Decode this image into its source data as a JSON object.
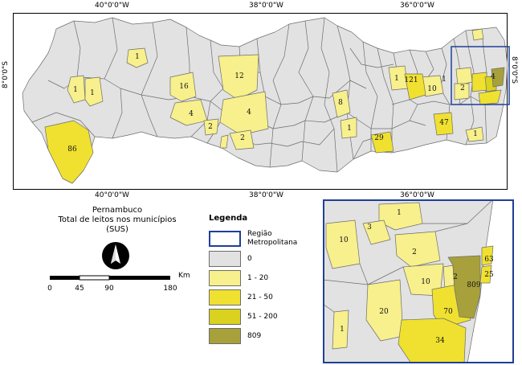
{
  "map": {
    "coords_top": [
      "40°0'0\"W",
      "38°0'0\"W",
      "36°0'0\"W"
    ],
    "coords_bottom": [
      "40°0'0\"W",
      "38°0'0\"W",
      "36°0'0\"W"
    ],
    "lat_left": "8°0'0\"S",
    "lat_right": "8°0'0\"S",
    "municipality_labels": [
      "1",
      "1",
      "1",
      "16",
      "12",
      "4",
      "4",
      "2",
      "2",
      "86",
      "8",
      "1",
      "121",
      "10",
      "1",
      "1",
      "47",
      "29",
      "2",
      "4",
      "1"
    ]
  },
  "inset": {
    "municipality_labels": [
      "1",
      "3",
      "10",
      "2",
      "10",
      "2",
      "20",
      "70",
      "809",
      "63",
      "25",
      "34",
      "1"
    ]
  },
  "title": {
    "line1": "Pernambuco",
    "line2": "Total de leitos nos municípios",
    "line3": "(SUS)"
  },
  "scale": {
    "unit": "Km",
    "ticks": [
      "0",
      "45",
      "90",
      "180"
    ]
  },
  "legend": {
    "heading": "Legenda",
    "items": [
      {
        "label": "Região Metropolitana",
        "color": "#ffffff",
        "border": "#1f3f99"
      },
      {
        "label": "0",
        "color": "#e2e2e2"
      },
      {
        "label": "1 - 20",
        "color": "#f7f08c"
      },
      {
        "label": "21 - 50",
        "color": "#f0e130"
      },
      {
        "label": "51 - 200",
        "color": "#d9d21e"
      },
      {
        "label": "809",
        "color": "#a8a03a"
      }
    ]
  },
  "colors": {
    "zero": "#e2e2e2",
    "c1_20": "#f7f08c",
    "c21_50": "#f0e130",
    "c51_200": "#d9d21e",
    "c809": "#a8a03a",
    "outline": "#6d6d6d",
    "box": "#1f3f99"
  }
}
